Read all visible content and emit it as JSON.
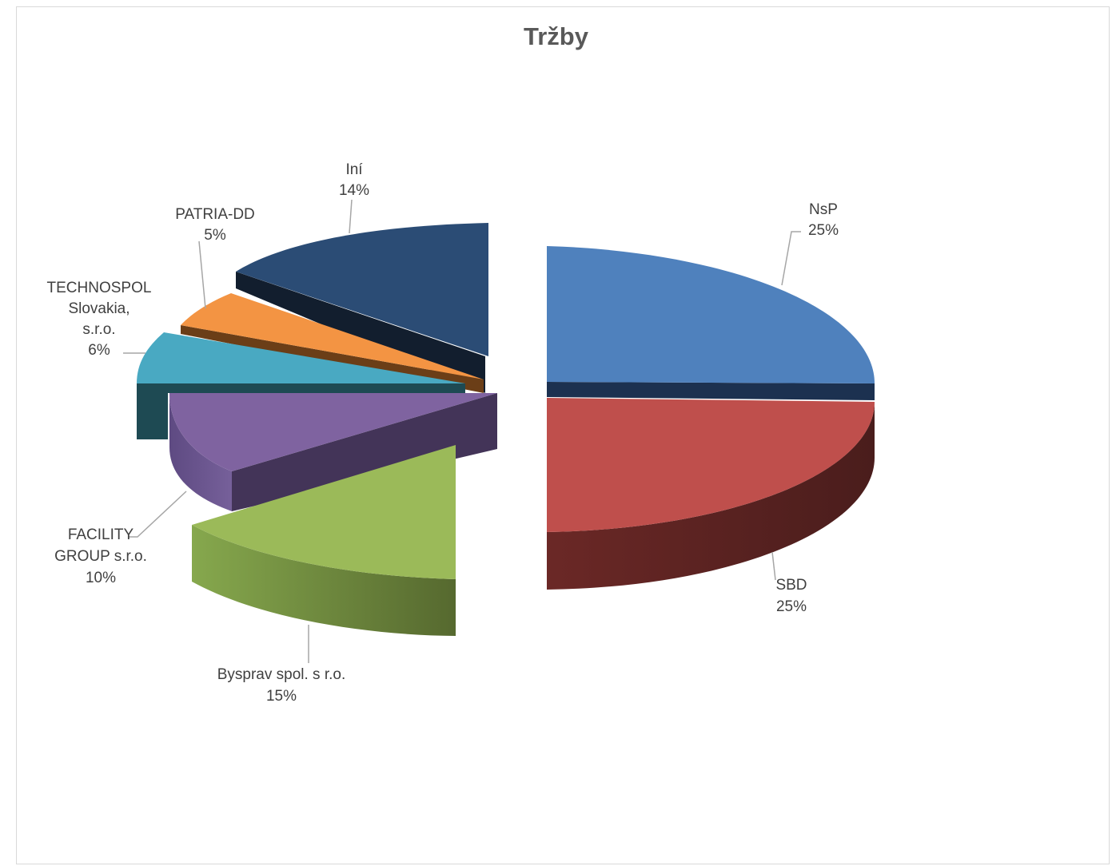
{
  "chart_data": {
    "type": "pie",
    "title": "Tržby",
    "slices": [
      {
        "name": "NsP",
        "pct_label": "25%",
        "value": 25,
        "color": "#4F81BD"
      },
      {
        "name": "SBD",
        "pct_label": "25%",
        "value": 25,
        "color": "#C0504D"
      },
      {
        "name": "Bysprav spol. s r.o.",
        "pct_label": "15%",
        "value": 15,
        "color": "#9BBB59"
      },
      {
        "name": "FACILITY GROUP s.r.o.",
        "pct_label": "10%",
        "value": 10,
        "color": "#8064A2"
      },
      {
        "name": "TECHNOSPOL Slovakia, s.r.o.",
        "pct_label": "6%",
        "value": 6,
        "color": "#4BACC6"
      },
      {
        "name": "PATRIA-DD",
        "pct_label": "5%",
        "value": 5,
        "color": "#F79646"
      },
      {
        "name": "Iní",
        "pct_label": "14%",
        "value": 14,
        "color": "#2C4D75"
      }
    ],
    "legend": "none",
    "data_labels": "category name and percentage",
    "style": "3D exploded pie"
  }
}
